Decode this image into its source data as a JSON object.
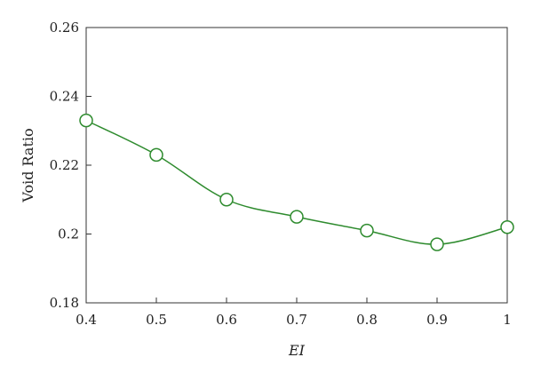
{
  "chart_data": {
    "type": "line",
    "xlabel": "EI",
    "ylabel": "Void Ratio",
    "xlim": [
      0.4,
      1.0
    ],
    "ylim": [
      0.18,
      0.26
    ],
    "x_ticks": [
      "0.4",
      "0.5",
      "0.6",
      "0.7",
      "0.8",
      "0.9",
      "1"
    ],
    "y_ticks": [
      "0.18",
      "0.2",
      "0.22",
      "0.24",
      "0.26"
    ],
    "grid": false,
    "legend": "none",
    "series": [
      {
        "color": "#2e8b2e",
        "marker": "open-circle",
        "x": [
          0.4,
          0.5,
          0.6,
          0.7,
          0.8,
          0.9,
          1.0
        ],
        "y": [
          0.233,
          0.223,
          0.21,
          0.205,
          0.201,
          0.197,
          0.202
        ]
      }
    ]
  }
}
